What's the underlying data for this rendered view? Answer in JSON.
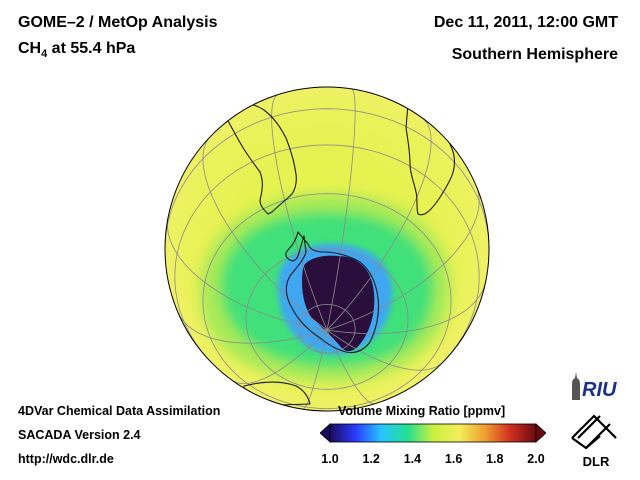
{
  "header": {
    "title_line1": "GOME–2 / MetOp Analysis",
    "species": "CH",
    "species_sub": "4",
    "pressure_text": " at 55.4 hPa",
    "datetime": "Dec 11, 2011, 12:00 GMT",
    "hemisphere": "Southern Hemisphere"
  },
  "footer": {
    "line1": "4DVar Chemical Data Assimilation",
    "line2": "SACADA Version 2.4",
    "line3": "http://wdc.dlr.de"
  },
  "colorbar": {
    "title": "Volume Mixing Ratio [ppmv]",
    "min": 1.0,
    "max": 2.0,
    "ticks": [
      "1.0",
      "1.2",
      "1.4",
      "1.6",
      "1.8",
      "2.0"
    ],
    "colors": [
      "#1a0a5e",
      "#2a3cff",
      "#27c6ff",
      "#22e090",
      "#c8f040",
      "#f2ef5a",
      "#f0a030",
      "#d03020",
      "#6a0a10"
    ]
  },
  "map": {
    "projection": "orthographic",
    "hemisphere": "south",
    "background_level_ppmv": 1.6,
    "band_level_ppmv": 1.45,
    "vortex_level_ppmv": 1.0,
    "colors": {
      "background": "#e8f254",
      "band": "#40e07a",
      "band_light": "#9ce85a",
      "inner": "#3fa0ff",
      "vortex": "#2a0f3c",
      "coast": "#1a1a1a",
      "grid": "#8a8a8a"
    }
  },
  "logos": {
    "riu_text": "RIU",
    "dlr_text": "DLR"
  }
}
